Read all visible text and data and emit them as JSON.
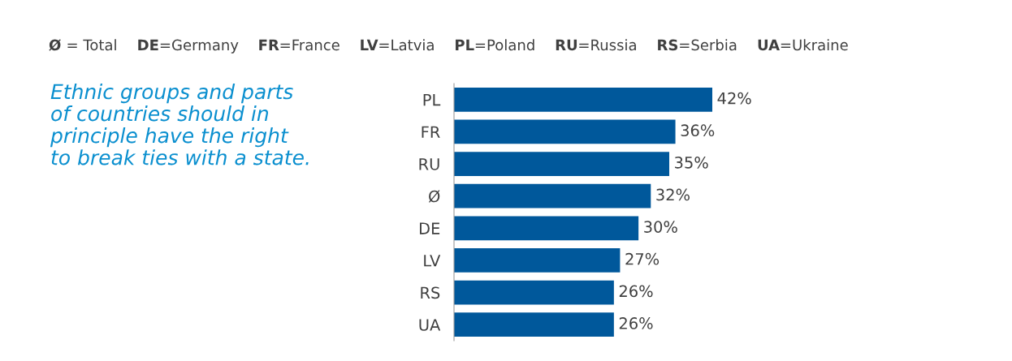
{
  "chart_data": {
    "type": "bar",
    "orientation": "horizontal",
    "title": "Ethnic groups and parts\nof countries should in\nprinciple have the right\nto break ties with a state.",
    "categories": [
      "PL",
      "FR",
      "RU",
      "Ø",
      "DE",
      "LV",
      "RS",
      "UA"
    ],
    "values": [
      42,
      36,
      35,
      32,
      30,
      27,
      26,
      26
    ],
    "value_labels": [
      "42%",
      "36%",
      "35%",
      "32%",
      "30%",
      "27%",
      "26%",
      "26%"
    ],
    "color": "#00589b",
    "annotations": [
      "Ø = Total",
      "DE=Germany",
      "FR=France",
      "LV=Latvia",
      "PL=Poland",
      "RU=Russia",
      "RS=Serbia",
      "UA=Ukraine"
    ],
    "grid": false,
    "legend": false
  }
}
